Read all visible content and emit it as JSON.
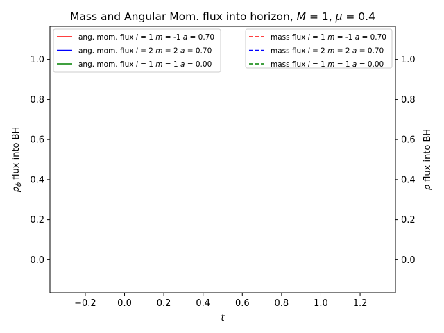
{
  "chart_data": {
    "type": "line",
    "title": "Mass and Angular Mom. flux into horizon, M = 1, μ = 0.4",
    "title_parts": {
      "prefix": "Mass and Angular Mom. flux into horizon, ",
      "M_symbol": "M",
      "M_value": " = 1, ",
      "mu_symbol": "μ",
      "mu_value": " = 0.4"
    },
    "xlabel": "t",
    "ylabel_left": "ρ_φ flux into BH",
    "ylabel_left_parts": {
      "base": "ρ",
      "sub": "ϕ",
      "rest": " flux into BH"
    },
    "ylabel_right": "ρ flux into BH",
    "ylabel_right_parts": {
      "base": "ρ",
      "rest": " flux into BH"
    },
    "xlim": [
      -0.38,
      1.38
    ],
    "ylim": [
      -0.165,
      1.165
    ],
    "x_ticks": [
      -0.2,
      0.0,
      0.2,
      0.4,
      0.6,
      0.8,
      1.0,
      1.2
    ],
    "x_tick_labels": [
      "−0.2",
      "0.0",
      "0.2",
      "0.4",
      "0.6",
      "0.8",
      "1.0",
      "1.2"
    ],
    "y_ticks": [
      0.0,
      0.2,
      0.4,
      0.6,
      0.8,
      1.0
    ],
    "y_tick_labels": [
      "0.0",
      "0.2",
      "0.4",
      "0.6",
      "0.8",
      "1.0"
    ],
    "grid": false,
    "legend_left": {
      "placement": "top-left",
      "entries": [
        {
          "text": "ang. mom. flux l = 1 m = -1 a = 0.70",
          "color": "#ff0000",
          "style": "solid",
          "parts": [
            "ang. mom. flux ",
            "l",
            " = 1 ",
            "m",
            " = -1 ",
            "a",
            " = 0.70"
          ]
        },
        {
          "text": "ang. mom. flux l = 2 m = 2 a = 0.70",
          "color": "#0000ff",
          "style": "solid",
          "parts": [
            "ang. mom. flux ",
            "l",
            " = 2 ",
            "m",
            " = 2 ",
            "a",
            " = 0.70"
          ]
        },
        {
          "text": "ang. mom. flux l = 1 m = 1 a = 0.00",
          "color": "#008000",
          "style": "solid",
          "parts": [
            "ang. mom. flux ",
            "l",
            " = 1 ",
            "m",
            " = 1 ",
            "a",
            " = 0.00"
          ]
        }
      ]
    },
    "legend_right": {
      "placement": "top-right",
      "entries": [
        {
          "text": "mass flux l = 1 m = -1 a = 0.70",
          "color": "#ff0000",
          "style": "dashed",
          "parts": [
            "mass flux ",
            "l",
            " = 1 ",
            "m",
            " = -1 ",
            "a",
            " = 0.70"
          ]
        },
        {
          "text": "mass flux l = 2 m = 2 a = 0.70",
          "color": "#0000ff",
          "style": "dashed",
          "parts": [
            "mass flux ",
            "l",
            " = 2 ",
            "m",
            " = 2 ",
            "a",
            " = 0.70"
          ]
        },
        {
          "text": "mass flux l = 1 m = 1 a = 0.00",
          "color": "#008000",
          "style": "dashed",
          "parts": [
            "mass flux ",
            "l",
            " = 1 ",
            "m",
            " = 1 ",
            "a",
            " = 0.00"
          ]
        }
      ]
    },
    "series": [
      {
        "name": "ang. mom. flux l = 1 m = -1 a = 0.70",
        "x": [],
        "y": []
      },
      {
        "name": "ang. mom. flux l = 2 m = 2 a = 0.70",
        "x": [],
        "y": []
      },
      {
        "name": "ang. mom. flux l = 1 m = 1 a = 0.00",
        "x": [],
        "y": []
      },
      {
        "name": "mass flux l = 1 m = -1 a = 0.70",
        "x": [],
        "y": []
      },
      {
        "name": "mass flux l = 2 m = 2 a = 0.70",
        "x": [],
        "y": []
      },
      {
        "name": "mass flux l = 1 m = 1 a = 0.00",
        "x": [],
        "y": []
      }
    ]
  }
}
